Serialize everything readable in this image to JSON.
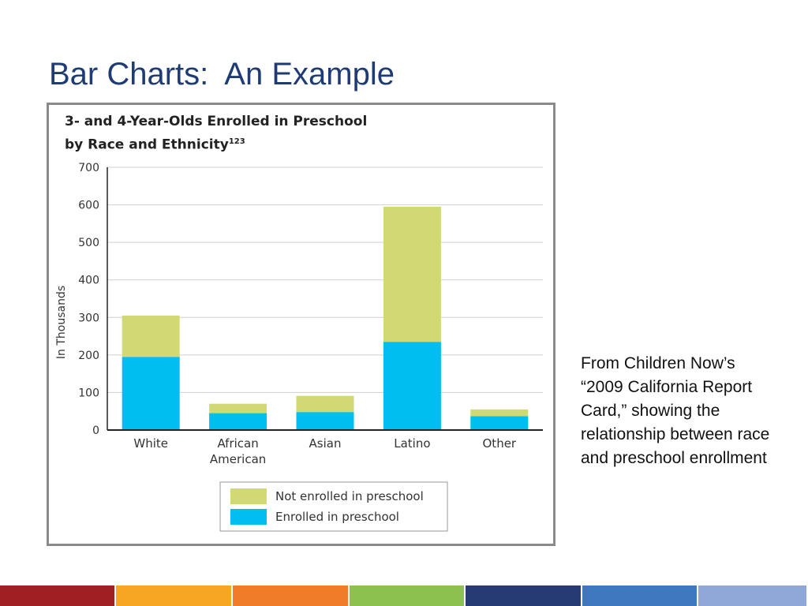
{
  "slide": {
    "title": "Bar Charts:  An Example",
    "note": "From Children Now’s “2009 California Report Card,” showing the relationship between race and preschool enrollment"
  },
  "footer": {
    "colors": [
      "#a01f23",
      "#f6a623",
      "#f07c2a",
      "#8cc04f",
      "#263a74",
      "#3f78bf",
      "#8fa8d8"
    ]
  },
  "chart_data": {
    "type": "bar",
    "stacked": true,
    "title": "3- and 4-Year-Olds Enrolled in Preschool",
    "title_line2": "by Race and Ethnicity",
    "title_superscript": "123",
    "ylabel": "In Thousands",
    "xlabel": "",
    "ylim": [
      0,
      700
    ],
    "yticks": [
      0,
      100,
      200,
      300,
      400,
      500,
      600,
      700
    ],
    "grid": true,
    "legend_position": "bottom-center",
    "categories": [
      [
        "White"
      ],
      [
        "African",
        "American"
      ],
      [
        "Asian"
      ],
      [
        "Latino"
      ],
      [
        "Other"
      ]
    ],
    "category_names": [
      "White",
      "African American",
      "Asian",
      "Latino",
      "Other"
    ],
    "series": [
      {
        "name": "Enrolled in preschool",
        "color": "#00bff0",
        "values": [
          195,
          45,
          48,
          235,
          37
        ]
      },
      {
        "name": "Not enrolled in preschool",
        "color": "#d1da72",
        "values": [
          110,
          25,
          43,
          360,
          18
        ]
      }
    ],
    "legend_order": [
      1,
      0
    ]
  }
}
